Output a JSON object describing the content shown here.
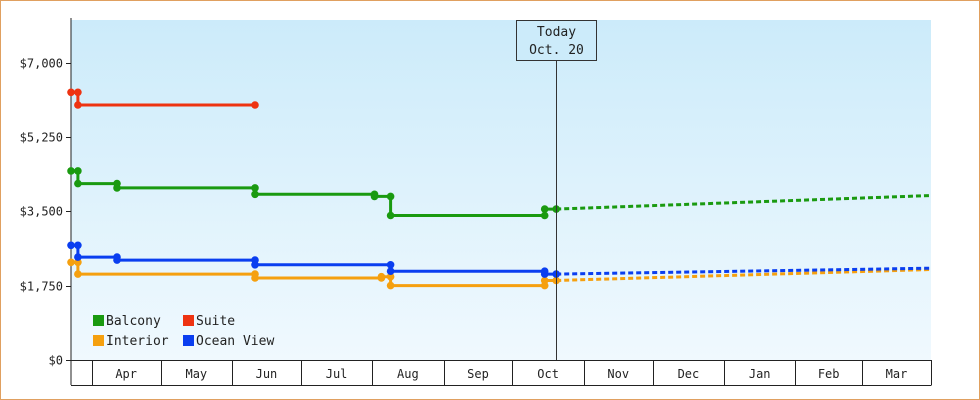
{
  "chart_data": {
    "type": "line",
    "title": "",
    "xlabel": "",
    "ylabel": "",
    "ylim": [
      0,
      8000
    ],
    "y_ticks": [
      0,
      1750,
      3500,
      5250,
      7000
    ],
    "y_tick_labels": [
      "$0",
      "$1,750",
      "$3,500",
      "$5,250",
      "$7,000"
    ],
    "x_domain": [
      "2023-03-23",
      "2024-03-31"
    ],
    "x_ticks": [
      "Apr",
      "May",
      "Jun",
      "Jul",
      "Aug",
      "Sep",
      "Oct",
      "Nov",
      "Dec",
      "Jan",
      "Feb",
      "Mar"
    ],
    "x_tick_dates": [
      "2023-04-01",
      "2023-05-01",
      "2023-06-01",
      "2023-07-01",
      "2023-08-01",
      "2023-09-01",
      "2023-10-01",
      "2023-11-01",
      "2023-12-01",
      "2024-01-01",
      "2024-02-01",
      "2024-03-01",
      "2024-03-31"
    ],
    "today": {
      "date": "2023-10-20",
      "line1": "Today",
      "line2": "Oct. 20"
    },
    "grid": false,
    "legend": "bottom-left",
    "background": "light-blue-gradient",
    "series": [
      {
        "name": "Balcony",
        "color": "#1a9a10",
        "points": [
          [
            "2023-03-23",
            4450
          ],
          [
            "2023-03-26",
            4450
          ],
          [
            "2023-03-26",
            4150
          ],
          [
            "2023-04-12",
            4150
          ],
          [
            "2023-04-12",
            4050
          ],
          [
            "2023-06-11",
            4050
          ],
          [
            "2023-06-11",
            3900
          ],
          [
            "2023-08-02",
            3900
          ],
          [
            "2023-08-02",
            3850
          ],
          [
            "2023-08-09",
            3850
          ],
          [
            "2023-08-09",
            3400
          ],
          [
            "2023-10-15",
            3400
          ],
          [
            "2023-10-15",
            3550
          ],
          [
            "2023-10-20",
            3550
          ]
        ],
        "forecast": [
          [
            "2023-10-20",
            3550
          ],
          [
            "2024-03-31",
            3870
          ]
        ]
      },
      {
        "name": "Suite",
        "color": "#ee3311",
        "points": [
          [
            "2023-03-23",
            6300
          ],
          [
            "2023-03-26",
            6300
          ],
          [
            "2023-03-26",
            6000
          ],
          [
            "2023-06-11",
            6000
          ]
        ]
      },
      {
        "name": "Interior",
        "color": "#f5a00f",
        "points": [
          [
            "2023-03-23",
            2300
          ],
          [
            "2023-03-26",
            2300
          ],
          [
            "2023-03-26",
            2020
          ],
          [
            "2023-06-11",
            2020
          ],
          [
            "2023-06-11",
            1930
          ],
          [
            "2023-08-05",
            1930
          ],
          [
            "2023-08-05",
            1960
          ],
          [
            "2023-08-09",
            1960
          ],
          [
            "2023-08-09",
            1750
          ],
          [
            "2023-10-15",
            1750
          ],
          [
            "2023-10-15",
            1870
          ],
          [
            "2023-10-20",
            1870
          ]
        ],
        "forecast": [
          [
            "2023-10-20",
            1870
          ],
          [
            "2024-03-31",
            2130
          ]
        ]
      },
      {
        "name": "Ocean View",
        "color": "#0a3ef0",
        "points": [
          [
            "2023-03-23",
            2700
          ],
          [
            "2023-03-26",
            2700
          ],
          [
            "2023-03-26",
            2420
          ],
          [
            "2023-04-12",
            2420
          ],
          [
            "2023-04-12",
            2350
          ],
          [
            "2023-06-11",
            2350
          ],
          [
            "2023-06-11",
            2240
          ],
          [
            "2023-08-09",
            2240
          ],
          [
            "2023-08-09",
            2090
          ],
          [
            "2023-10-15",
            2090
          ],
          [
            "2023-10-15",
            2020
          ],
          [
            "2023-10-20",
            2020
          ]
        ],
        "forecast": [
          [
            "2023-10-20",
            2020
          ],
          [
            "2024-03-31",
            2160
          ]
        ]
      }
    ],
    "legend_order": [
      "Balcony",
      "Suite",
      "Interior",
      "Ocean View"
    ]
  }
}
